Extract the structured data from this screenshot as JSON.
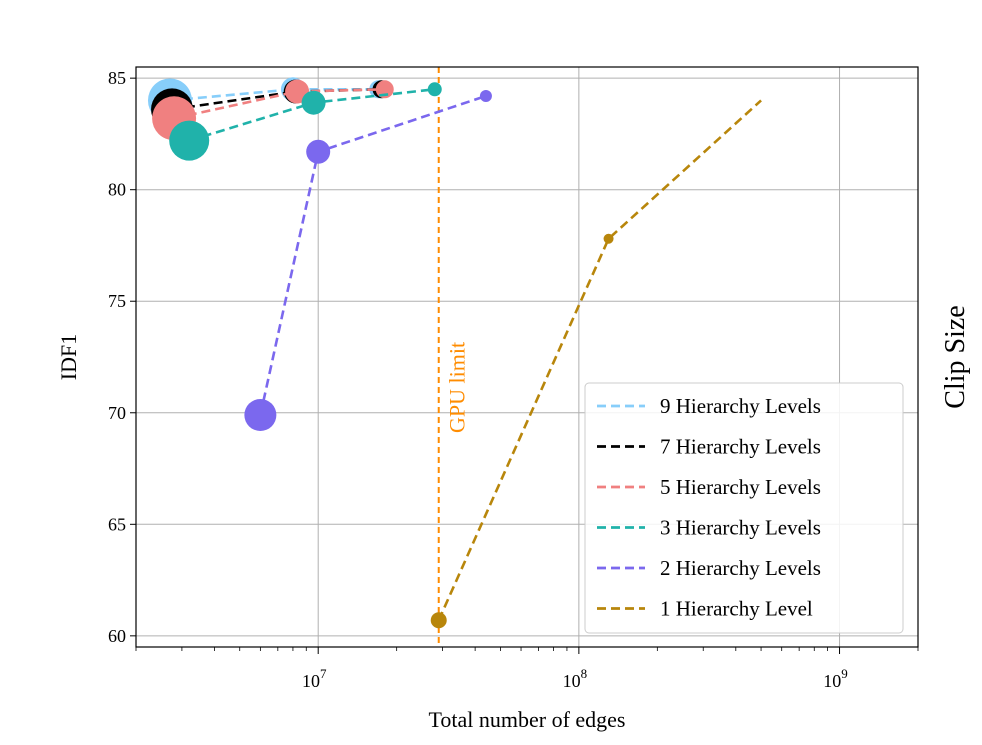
{
  "chart_data": {
    "type": "line",
    "xlabel": "Total number of edges",
    "ylabel": "IDF1",
    "side_label": "Clip Size",
    "xscale": "log",
    "xlim": [
      2000000,
      2000000000
    ],
    "ylim": [
      59.5,
      85.5
    ],
    "x_ticks": [
      {
        "value": 10000000,
        "base": "10",
        "exp": "7"
      },
      {
        "value": 100000000,
        "base": "10",
        "exp": "8"
      },
      {
        "value": 1000000000,
        "base": "10",
        "exp": "9"
      }
    ],
    "y_ticks": [
      60,
      65,
      70,
      75,
      80,
      85
    ],
    "grid": true,
    "legend_position": "bottom-right",
    "annotations": [
      {
        "type": "vline",
        "x": 29000000,
        "label": "GPU limit",
        "color": "#ff8c00"
      }
    ],
    "series": [
      {
        "name": "9 Hierarchy Levels",
        "color": "#87cefa",
        "line_color": "#87cefa",
        "points": [
          {
            "x": 2700000,
            "y": 84.0,
            "size": 22
          },
          {
            "x": 8000000,
            "y": 84.5,
            "size": 12
          },
          {
            "x": 17000000,
            "y": 84.5,
            "size": 9
          }
        ]
      },
      {
        "name": "7 Hierarchy Levels",
        "color": "#000000",
        "line_color": "#000000",
        "points": [
          {
            "x": 2750000,
            "y": 83.6,
            "size": 21
          },
          {
            "x": 8200000,
            "y": 84.4,
            "size": 12
          },
          {
            "x": 17500000,
            "y": 84.5,
            "size": 9
          }
        ]
      },
      {
        "name": "5 Hierarchy Levels",
        "color": "#f08080",
        "line_color": "#f08080",
        "points": [
          {
            "x": 2800000,
            "y": 83.2,
            "size": 22
          },
          {
            "x": 8300000,
            "y": 84.4,
            "size": 12
          },
          {
            "x": 18000000,
            "y": 84.5,
            "size": 9
          }
        ]
      },
      {
        "name": "3 Hierarchy Levels",
        "color": "#20b2aa",
        "line_color": "#20b2aa",
        "points": [
          {
            "x": 3200000,
            "y": 82.2,
            "size": 20
          },
          {
            "x": 9600000,
            "y": 83.9,
            "size": 12
          },
          {
            "x": 28000000,
            "y": 84.5,
            "size": 7
          }
        ]
      },
      {
        "name": "2 Hierarchy Levels",
        "color": "#7b68ee",
        "line_color": "#7b68ee",
        "points": [
          {
            "x": 6000000,
            "y": 69.9,
            "size": 16
          },
          {
            "x": 10000000,
            "y": 81.7,
            "size": 12
          },
          {
            "x": 44000000,
            "y": 84.2,
            "size": 6
          }
        ]
      },
      {
        "name": "1 Hierarchy Level",
        "color": "#b8860b",
        "line_color": "#b8860b",
        "points": [
          {
            "x": 29000000,
            "y": 60.7,
            "size": 8
          },
          {
            "x": 130000000,
            "y": 77.8,
            "size": 5
          },
          {
            "x": 500000000,
            "y": 84.0,
            "size": 0
          }
        ]
      }
    ]
  }
}
